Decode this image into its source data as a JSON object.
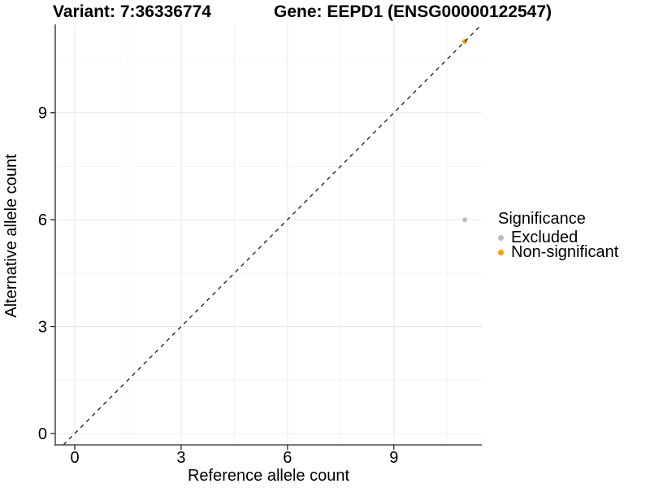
{
  "chart_data": {
    "type": "scatter",
    "titles": {
      "variant": "Variant: 7:36336774",
      "gene": "Gene: EEPD1 (ENSG00000122547)"
    },
    "xlabel": "Reference allele count",
    "ylabel": "Alternative allele count",
    "xlim": [
      -0.55,
      11.48
    ],
    "ylim": [
      -0.32,
      11.48
    ],
    "x_ticks": [
      0,
      3,
      6,
      9
    ],
    "y_ticks": [
      0,
      3,
      6,
      9
    ],
    "x_minor_ticks": [
      1.5,
      4.5,
      7.5,
      10.5
    ],
    "y_minor_ticks": [
      1.5,
      4.5,
      7.5,
      10.5
    ],
    "grid": "major+minor",
    "legend": {
      "title": "Significance",
      "position": "right"
    },
    "series": [
      {
        "name": "Excluded",
        "color": "#BDBDBD",
        "points": [
          {
            "x": 11,
            "y": 6
          }
        ]
      },
      {
        "name": "Non-significant",
        "color": "#F9A000",
        "points": [
          {
            "x": 11,
            "y": 11
          }
        ]
      }
    ],
    "identity_line": {
      "slope": 1,
      "intercept": 0,
      "style": "dashed",
      "color": "#1A1A1A"
    },
    "colors": {
      "background": "#FFFFFF",
      "grid_major": "#E8E8E8",
      "grid_minor": "#F4F4F4",
      "axis_line": "#4F4F4F",
      "tick_mark": "#2B2B2B",
      "text": "#000000"
    }
  }
}
